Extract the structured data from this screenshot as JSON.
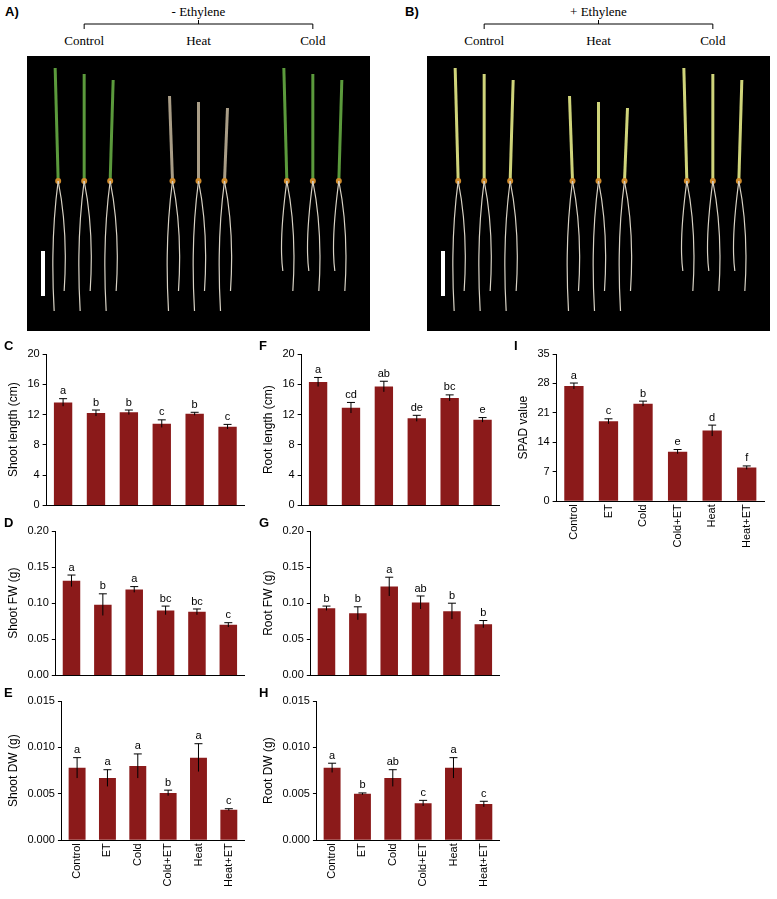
{
  "photo_panels": [
    {
      "panel": "A)",
      "header": "- Ethylene",
      "labels": [
        "Control",
        "Heat",
        "Cold"
      ]
    },
    {
      "panel": "B)",
      "header": "+ Ethylene",
      "labels": [
        "Control",
        "Heat",
        "Cold"
      ]
    }
  ],
  "chart_data": [
    {
      "type": "bar",
      "panel": "C",
      "y_label": "Shoot length (cm)",
      "categories": [
        "Control",
        "ET",
        "Cold",
        "Cold+ET",
        "Heat",
        "Heat+ET"
      ],
      "values": [
        13.6,
        12.2,
        12.3,
        10.8,
        12.1,
        10.4
      ],
      "errors": [
        0.5,
        0.4,
        0.3,
        0.5,
        0.2,
        0.3
      ],
      "annotations": [
        "a",
        "b",
        "b",
        "c",
        "b",
        "c"
      ],
      "color": "#8b1a1a",
      "ylim": [
        0,
        20
      ],
      "yticks": [
        0,
        4,
        8,
        12,
        16,
        20
      ],
      "grid": false,
      "tick_labels": "y"
    },
    {
      "type": "bar",
      "panel": "D",
      "y_label": "Shoot FW (g)",
      "categories": [
        "Control",
        "ET",
        "Cold",
        "Cold+ET",
        "Heat",
        "Heat+ET"
      ],
      "values": [
        0.131,
        0.098,
        0.119,
        0.09,
        0.088,
        0.07
      ],
      "errors": [
        0.008,
        0.015,
        0.004,
        0.006,
        0.004,
        0.003
      ],
      "annotations": [
        "a",
        "b",
        "a",
        "bc",
        "bc",
        "c"
      ],
      "color": "#8b1a1a",
      "ylim": [
        0,
        0.2
      ],
      "yticks": [
        {
          "value": 0,
          "label": "0.00"
        },
        0.05,
        {
          "value": 0.1,
          "label": "0.10"
        },
        0.15,
        {
          "value": 0.2,
          "label": "0.20"
        }
      ],
      "grid": false,
      "tick_labels": "y"
    },
    {
      "type": "bar",
      "panel": "E",
      "y_label": "Shoot DW (g)",
      "categories": [
        "Control",
        "ET",
        "Cold",
        "Cold+ET",
        "Heat",
        "Heat+ET"
      ],
      "values": [
        0.0078,
        0.0067,
        0.008,
        0.0051,
        0.0089,
        0.0033
      ],
      "errors": [
        0.0011,
        0.0009,
        0.0013,
        0.0003,
        0.0015,
        0.0001
      ],
      "annotations": [
        "a",
        "a",
        "a",
        "b",
        "a",
        "c"
      ],
      "color": "#8b1a1a",
      "ylim": [
        0,
        0.015
      ],
      "yticks": [
        {
          "value": 0,
          "label": "0.000"
        },
        0.005,
        {
          "value": 0.01,
          "label": "0.010"
        },
        0.015
      ],
      "grid": false
    },
    {
      "type": "bar",
      "panel": "F",
      "y_label": "Root length (cm)",
      "categories": [
        "Control",
        "ET",
        "Cold",
        "Cold+ET",
        "Heat",
        "Heat+ET"
      ],
      "values": [
        16.3,
        12.9,
        15.7,
        11.5,
        14.2,
        11.3
      ],
      "errors": [
        0.6,
        0.7,
        0.7,
        0.4,
        0.4,
        0.3
      ],
      "annotations": [
        "a",
        "cd",
        "ab",
        "de",
        "bc",
        "e"
      ],
      "color": "#8b1a1a",
      "ylim": [
        0,
        20
      ],
      "yticks": [
        0,
        4,
        8,
        12,
        16,
        20
      ],
      "grid": false,
      "tick_labels": "y"
    },
    {
      "type": "bar",
      "panel": "G",
      "y_label": "Root FW (g)",
      "categories": [
        "Control",
        "ET",
        "Cold",
        "Cold+ET",
        "Heat",
        "Heat+ET"
      ],
      "values": [
        0.093,
        0.086,
        0.123,
        0.101,
        0.089,
        0.071
      ],
      "errors": [
        0.003,
        0.009,
        0.013,
        0.009,
        0.011,
        0.005
      ],
      "annotations": [
        "b",
        "b",
        "a",
        "ab",
        "b",
        "b"
      ],
      "color": "#8b1a1a",
      "ylim": [
        0,
        0.2
      ],
      "yticks": [
        {
          "value": 0,
          "label": "0.00"
        },
        0.05,
        {
          "value": 0.1,
          "label": "0.10"
        },
        0.15,
        {
          "value": 0.2,
          "label": "0.20"
        }
      ],
      "grid": false,
      "tick_labels": "y"
    },
    {
      "type": "bar",
      "panel": "H",
      "y_label": "Root DW (g)",
      "categories": [
        "Control",
        "ET",
        "Cold",
        "Cold+ET",
        "Heat",
        "Heat+ET"
      ],
      "values": [
        0.0078,
        0.005,
        0.0067,
        0.004,
        0.0078,
        0.0039
      ],
      "errors": [
        0.0005,
        0.0001,
        0.0009,
        0.0003,
        0.0011,
        0.0003
      ],
      "annotations": [
        "a",
        "b",
        "ab",
        "c",
        "a",
        "c"
      ],
      "color": "#8b1a1a",
      "ylim": [
        0,
        0.015
      ],
      "yticks": [
        {
          "value": 0,
          "label": "0.000"
        },
        0.005,
        {
          "value": 0.01,
          "label": "0.010"
        },
        0.015
      ],
      "grid": false
    },
    {
      "type": "bar",
      "panel": "I",
      "y_label": "SPAD value",
      "categories": [
        "Control",
        "ET",
        "Cold",
        "Cold+ET",
        "Heat",
        "Heat+ET"
      ],
      "values": [
        27.4,
        19.0,
        23.2,
        11.8,
        16.8,
        8.0
      ],
      "errors": [
        0.7,
        0.6,
        0.6,
        0.5,
        1.3,
        0.4
      ],
      "annotations": [
        "a",
        "c",
        "b",
        "e",
        "d",
        "f"
      ],
      "color": "#8b1a1a",
      "ylim": [
        0,
        35
      ],
      "yticks": [
        0,
        7,
        14,
        21,
        28,
        35
      ],
      "grid": false
    }
  ]
}
